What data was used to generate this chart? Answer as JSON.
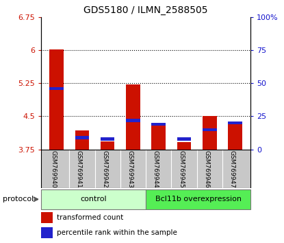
{
  "title": "GDS5180 / ILMN_2588505",
  "samples": [
    "GSM769940",
    "GSM769941",
    "GSM769942",
    "GSM769943",
    "GSM769944",
    "GSM769945",
    "GSM769946",
    "GSM769947"
  ],
  "red_values": [
    6.02,
    4.18,
    3.93,
    5.22,
    4.32,
    3.91,
    4.5,
    4.35
  ],
  "blue_values_pct": [
    46,
    9,
    8,
    22,
    19,
    8,
    15,
    20
  ],
  "ymin": 3.75,
  "ymax": 6.75,
  "yticks": [
    3.75,
    4.5,
    5.25,
    6.0,
    6.75
  ],
  "ytick_labels": [
    "3.75",
    "4.5",
    "5.25",
    "6",
    "6.75"
  ],
  "right_yticks_pct": [
    0,
    25,
    50,
    75,
    100
  ],
  "right_ytick_labels": [
    "0",
    "25",
    "50",
    "75",
    "100%"
  ],
  "bar_width": 0.55,
  "red_color": "#cc1100",
  "blue_color": "#2222cc",
  "control_color_light": "#ccffcc",
  "control_color_dark": "#55ee55",
  "control_label": "control",
  "overexp_label": "Bcl11b overexpression",
  "protocol_label": "protocol",
  "legend_red": "transformed count",
  "legend_blue": "percentile rank within the sample",
  "control_indices": [
    0,
    1,
    2,
    3
  ],
  "overexp_indices": [
    4,
    5,
    6,
    7
  ],
  "background_color": "#ffffff",
  "plot_bg_color": "#ffffff",
  "label_area_color": "#c8c8c8",
  "left_tick_color": "#cc1100",
  "right_tick_color": "#1111cc",
  "grid_yticks": [
    4.5,
    5.25,
    6.0
  ]
}
